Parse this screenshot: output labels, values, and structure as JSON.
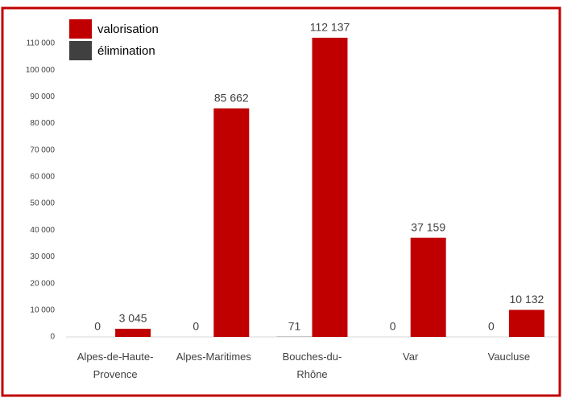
{
  "chart_data": {
    "type": "bar",
    "categories": [
      "Alpes-de-Haute-Provence",
      "Alpes-Maritimes",
      "Bouches-du-Rhône",
      "Var",
      "Vaucluse"
    ],
    "series": [
      {
        "name": "élimination",
        "color": "#404040",
        "values": [
          0,
          0,
          71,
          0,
          0
        ]
      },
      {
        "name": "valorisation",
        "color": "#c00000",
        "values": [
          3045,
          85662,
          112137,
          37159,
          10132
        ],
        "value_labels": [
          "3 045",
          "85 662",
          "112 137",
          "37 159",
          "10 132"
        ]
      }
    ],
    "legend_order": [
      "valorisation",
      "élimination"
    ],
    "legend": "top-left",
    "ylim": [
      0,
      110000
    ],
    "yticks": [
      0,
      {
        "value": 10000,
        "label": "10 000"
      },
      {
        "value": 20000,
        "label": "20 000"
      },
      {
        "value": 30000,
        "label": "30 000"
      },
      {
        "value": 40000,
        "label": "40 000"
      },
      {
        "value": 50000,
        "label": "50 000"
      },
      {
        "value": 60000,
        "label": "60 000"
      },
      {
        "value": 70000,
        "label": "70 000"
      },
      {
        "value": 80000,
        "label": "80 000"
      },
      {
        "value": 90000,
        "label": "90 000"
      },
      {
        "value": 100000,
        "label": "100 000"
      },
      {
        "value": 110000,
        "label": "110 000"
      }
    ],
    "grid": false
  }
}
